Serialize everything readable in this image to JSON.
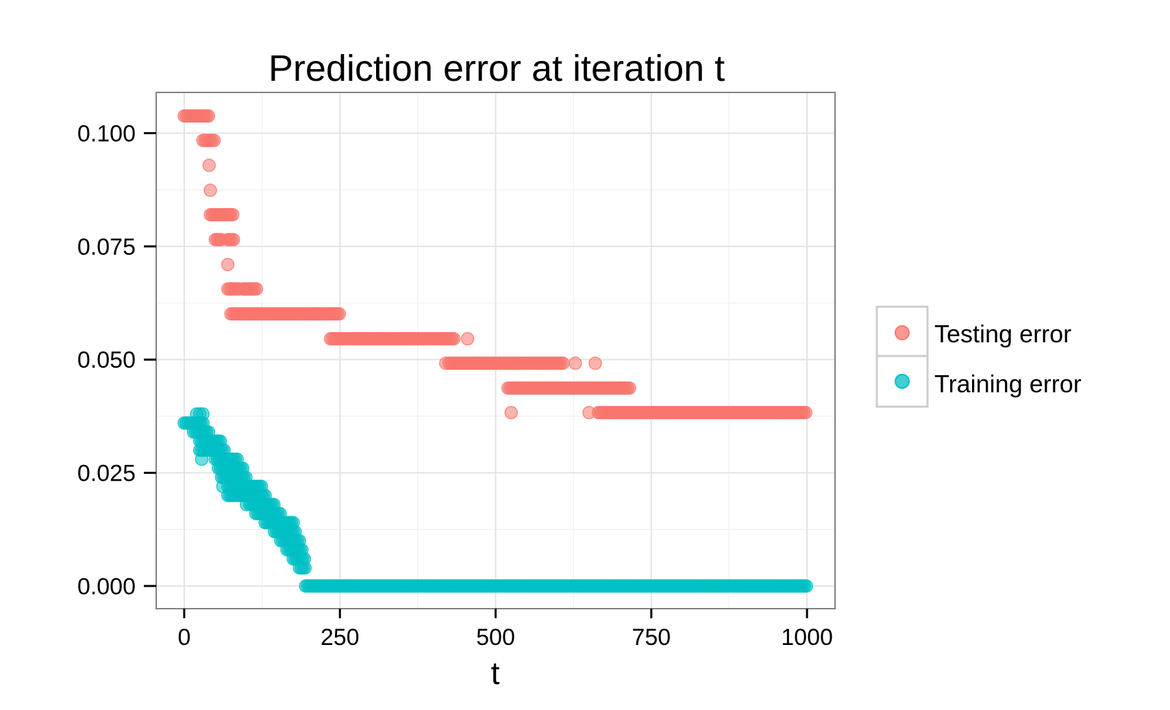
{
  "chart_data": {
    "type": "scatter",
    "title": "Prediction error at iteration t",
    "xlabel": "t",
    "ylabel": "",
    "xlim": [
      -45,
      1045
    ],
    "ylim": [
      -0.005,
      0.109
    ],
    "x_ticks": [
      0,
      250,
      500,
      750,
      1000
    ],
    "x_tick_labels": [
      "0",
      "250",
      "500",
      "750",
      "1000"
    ],
    "y_ticks": [
      0.0,
      0.025,
      0.05,
      0.075,
      0.1
    ],
    "y_tick_labels": [
      "0.000",
      "0.025",
      "0.050",
      "0.075",
      "0.100"
    ],
    "grid": true,
    "legend_position": "right",
    "series": [
      {
        "name": "Testing error",
        "color": "#F8766D",
        "segments": [
          [
            0,
            40,
            0.1038
          ],
          [
            30,
            48,
            0.0984
          ],
          [
            42,
            80,
            0.082
          ],
          [
            50,
            60,
            0.0765
          ],
          [
            70,
            80,
            0.0765
          ],
          [
            70,
            90,
            0.0656
          ],
          [
            95,
            118,
            0.0656
          ],
          [
            75,
            250,
            0.0601
          ],
          [
            235,
            435,
            0.0546
          ],
          [
            425,
            610,
            0.0492
          ],
          [
            520,
            700,
            0.0437
          ],
          [
            700,
            715,
            0.0437
          ],
          [
            665,
            1000,
            0.0383
          ]
        ],
        "points": [
          [
            40,
            0.0929
          ],
          [
            42,
            0.0874
          ],
          [
            70,
            0.071
          ],
          [
            455,
            0.0546
          ],
          [
            420,
            0.0492
          ],
          [
            628,
            0.0492
          ],
          [
            660,
            0.0492
          ],
          [
            525,
            0.0383
          ],
          [
            650,
            0.0383
          ]
        ]
      },
      {
        "name": "Training error",
        "color": "#00BFC4",
        "segments": [
          [
            0,
            30,
            0.036
          ],
          [
            15,
            40,
            0.034
          ],
          [
            25,
            60,
            0.032
          ],
          [
            25,
            65,
            0.03
          ],
          [
            50,
            65,
            0.028
          ],
          [
            70,
            85,
            0.028
          ],
          [
            55,
            95,
            0.026
          ],
          [
            60,
            100,
            0.024
          ],
          [
            70,
            125,
            0.022
          ],
          [
            70,
            105,
            0.02
          ],
          [
            100,
            130,
            0.02
          ],
          [
            105,
            145,
            0.018
          ],
          [
            115,
            155,
            0.016
          ],
          [
            130,
            175,
            0.014
          ],
          [
            145,
            180,
            0.012
          ],
          [
            155,
            185,
            0.01
          ],
          [
            165,
            190,
            0.008
          ],
          [
            175,
            195,
            0.006
          ],
          [
            185,
            195,
            0.004
          ],
          [
            195,
            1000,
            0.0
          ]
        ],
        "points": [
          [
            20,
            0.038
          ],
          [
            25,
            0.038
          ],
          [
            30,
            0.038
          ],
          [
            28,
            0.028
          ],
          [
            62,
            0.022
          ],
          [
            100,
            0.018
          ]
        ]
      }
    ]
  },
  "legend": {
    "items": [
      {
        "label": "Testing error",
        "color": "#F8766D"
      },
      {
        "label": "Training error",
        "color": "#00BFC4"
      }
    ]
  }
}
